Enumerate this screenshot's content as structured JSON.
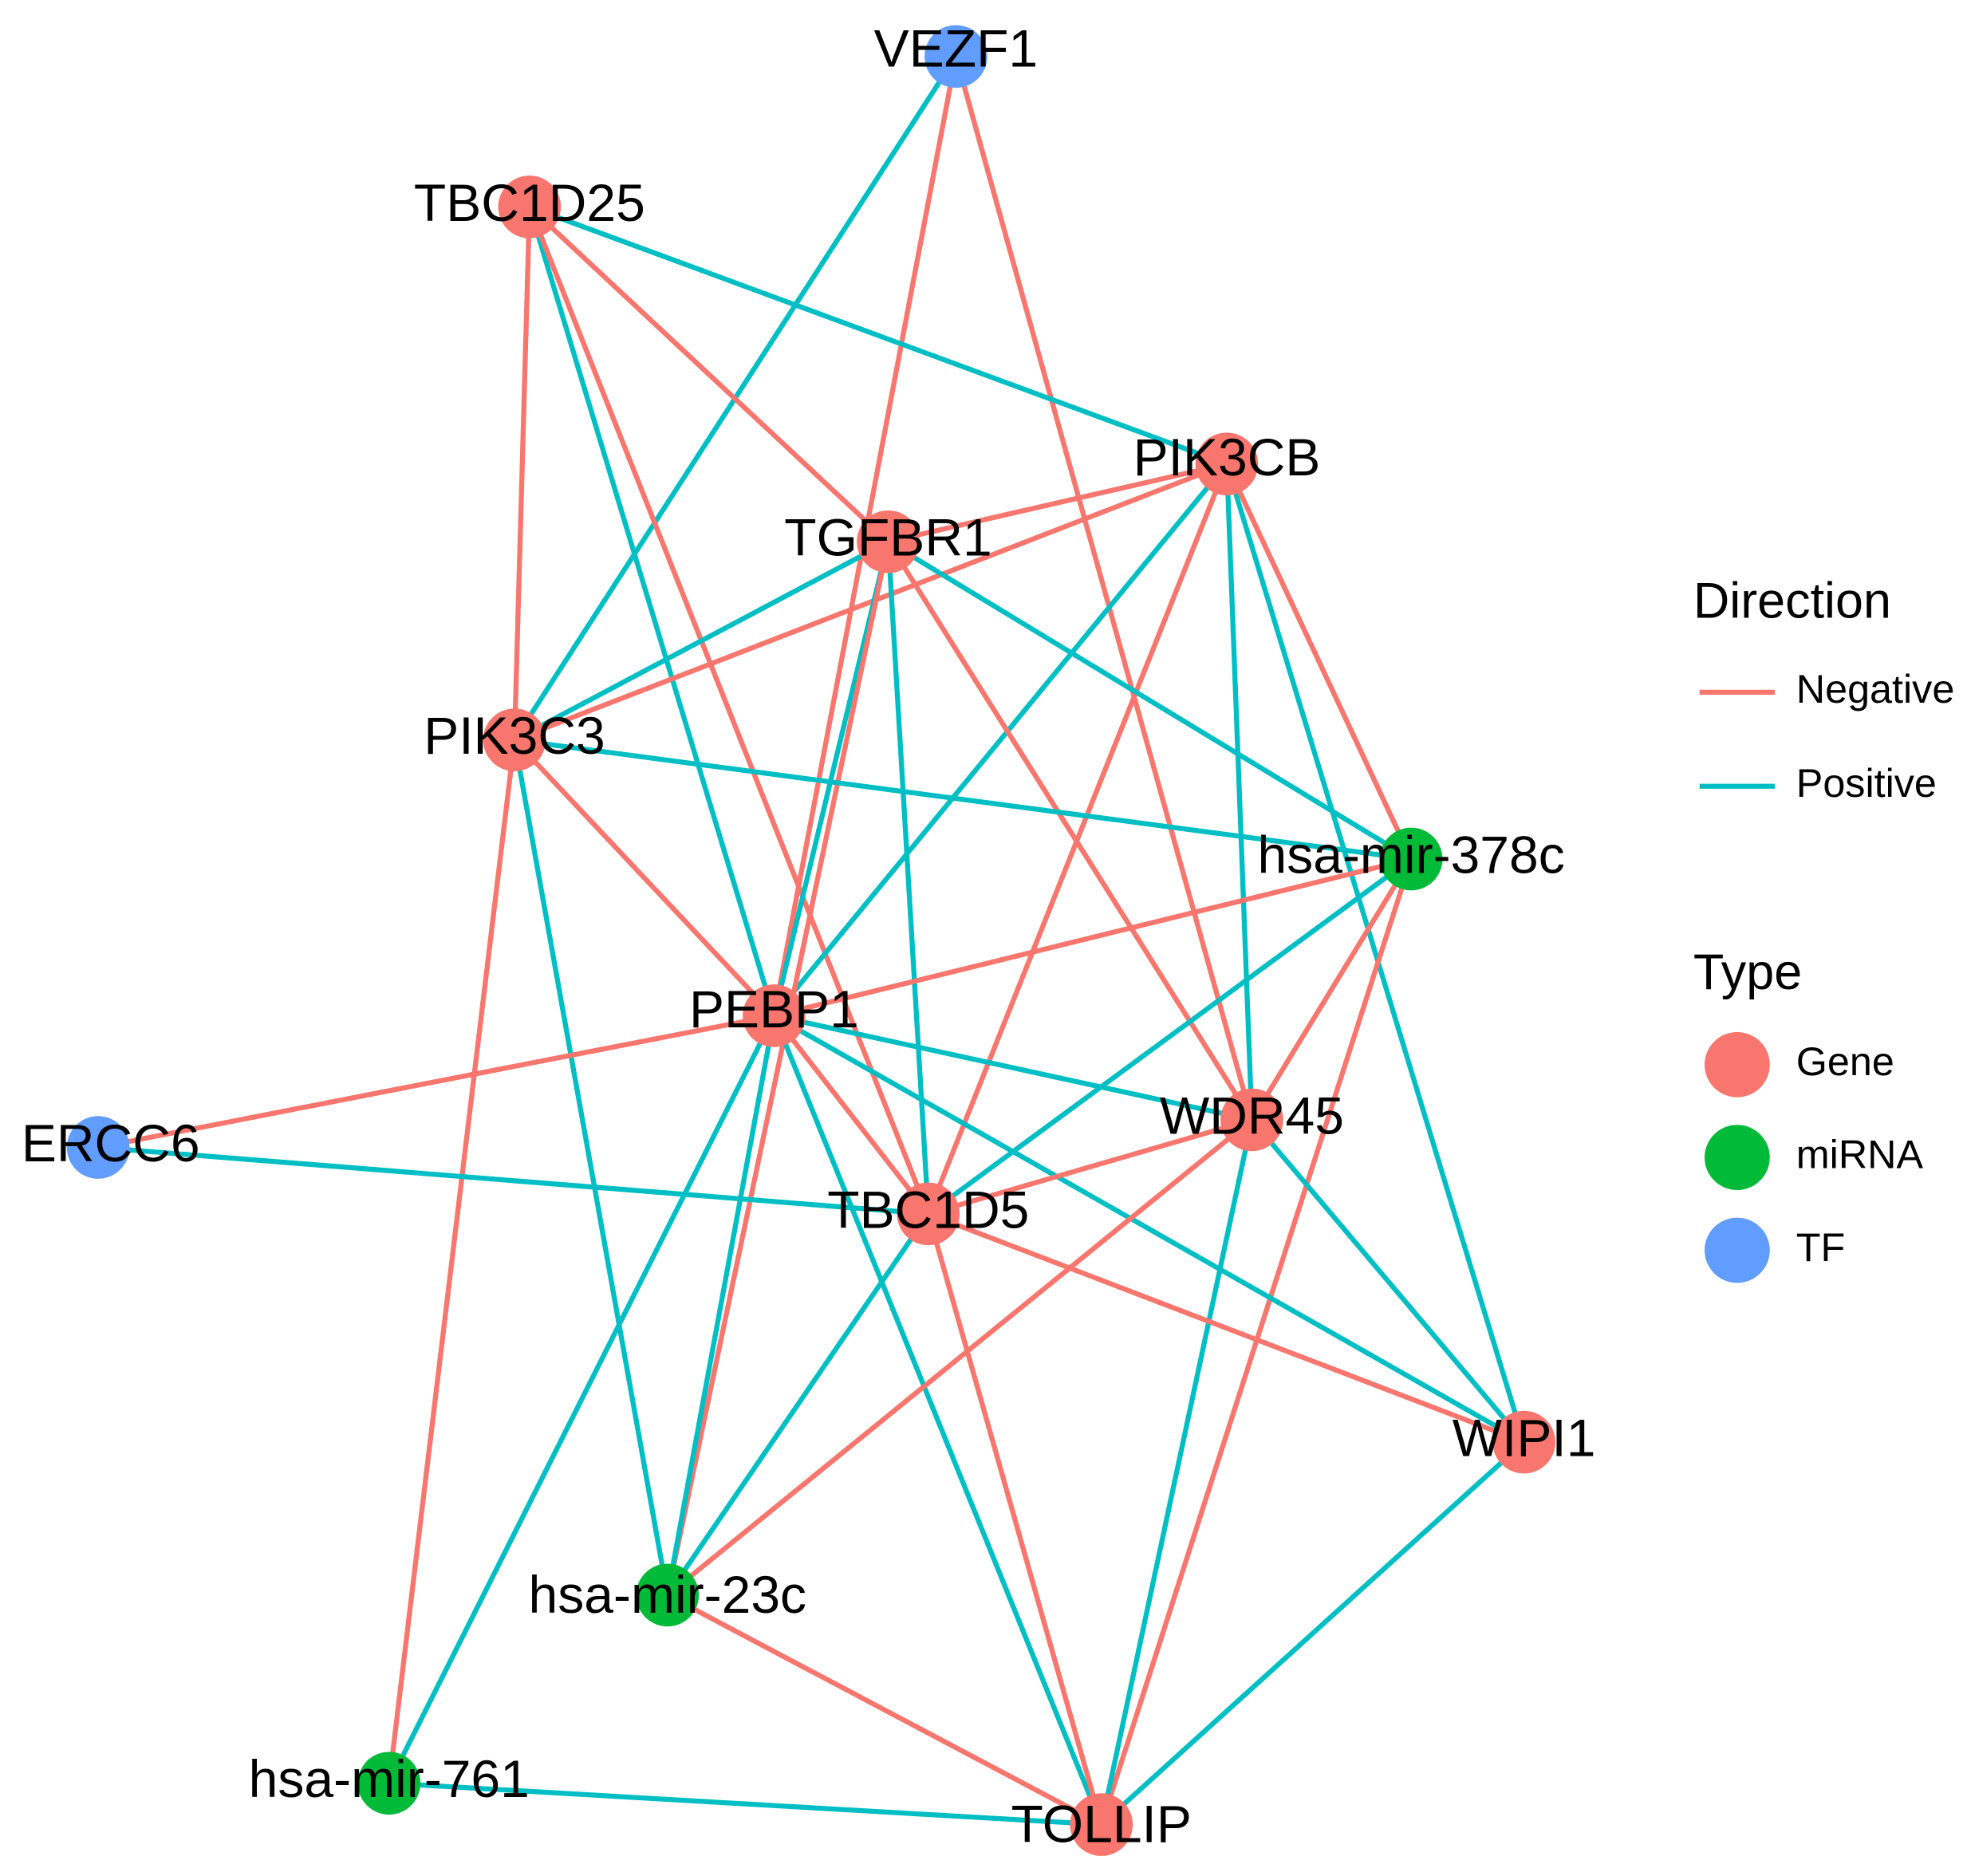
{
  "nodes": [
    {
      "label": "VEZF1",
      "type": 2
    },
    {
      "label": "TBC1D25",
      "type": 0
    },
    {
      "label": "PIK3CB",
      "type": 0
    },
    {
      "label": "TGFBR1",
      "type": 0
    },
    {
      "label": "PIK3C3",
      "type": 0
    },
    {
      "label": "hsa-mir-378c",
      "type": 1
    },
    {
      "label": "PEBP1",
      "type": 0
    },
    {
      "label": "ERCC6",
      "type": 2
    },
    {
      "label": "WDR45",
      "type": 0
    },
    {
      "label": "TBC1D5",
      "type": 0
    },
    {
      "label": "WIPI1",
      "type": 0
    },
    {
      "label": "hsa-mir-23c",
      "type": 1
    },
    {
      "label": "hsa-mir-761",
      "type": 1
    },
    {
      "label": "TOLLIP",
      "type": 0
    }
  ],
  "edges": [
    [
      0,
      4,
      1
    ],
    [
      0,
      6,
      0
    ],
    [
      0,
      8,
      0
    ],
    [
      1,
      2,
      1
    ],
    [
      1,
      3,
      0
    ],
    [
      1,
      4,
      0
    ],
    [
      1,
      6,
      1
    ],
    [
      1,
      9,
      0
    ],
    [
      2,
      4,
      0
    ],
    [
      2,
      3,
      0
    ],
    [
      2,
      6,
      1
    ],
    [
      2,
      9,
      0
    ],
    [
      2,
      8,
      1
    ],
    [
      2,
      10,
      1
    ],
    [
      2,
      5,
      0
    ],
    [
      3,
      4,
      1
    ],
    [
      3,
      6,
      1
    ],
    [
      3,
      11,
      0
    ],
    [
      3,
      9,
      1
    ],
    [
      3,
      8,
      0
    ],
    [
      3,
      5,
      1
    ],
    [
      4,
      5,
      1
    ],
    [
      4,
      6,
      0
    ],
    [
      4,
      11,
      1
    ],
    [
      4,
      12,
      0
    ],
    [
      5,
      6,
      0
    ],
    [
      5,
      9,
      1
    ],
    [
      5,
      8,
      0
    ],
    [
      5,
      13,
      0
    ],
    [
      6,
      7,
      0
    ],
    [
      6,
      8,
      1
    ],
    [
      6,
      9,
      0
    ],
    [
      6,
      10,
      1
    ],
    [
      6,
      11,
      1
    ],
    [
      6,
      12,
      1
    ],
    [
      6,
      13,
      1
    ],
    [
      7,
      9,
      1
    ],
    [
      8,
      9,
      0
    ],
    [
      8,
      10,
      1
    ],
    [
      8,
      11,
      0
    ],
    [
      8,
      13,
      1
    ],
    [
      9,
      10,
      0
    ],
    [
      9,
      11,
      1
    ],
    [
      9,
      13,
      0
    ],
    [
      10,
      13,
      1
    ],
    [
      11,
      13,
      0
    ],
    [
      12,
      13,
      1
    ]
  ],
  "legend": {
    "direction": {
      "title": "Direction",
      "entries": [
        {
          "label": "Negative",
          "color": "#F8766D"
        },
        {
          "label": "Positive",
          "color": "#00BFC4"
        }
      ]
    },
    "type": {
      "title": "Type",
      "entries": [
        {
          "label": "Gene",
          "color": "#F8766D"
        },
        {
          "label": "miRNA",
          "color": "#00BA38"
        },
        {
          "label": "TF",
          "color": "#619CFF"
        }
      ]
    }
  }
}
